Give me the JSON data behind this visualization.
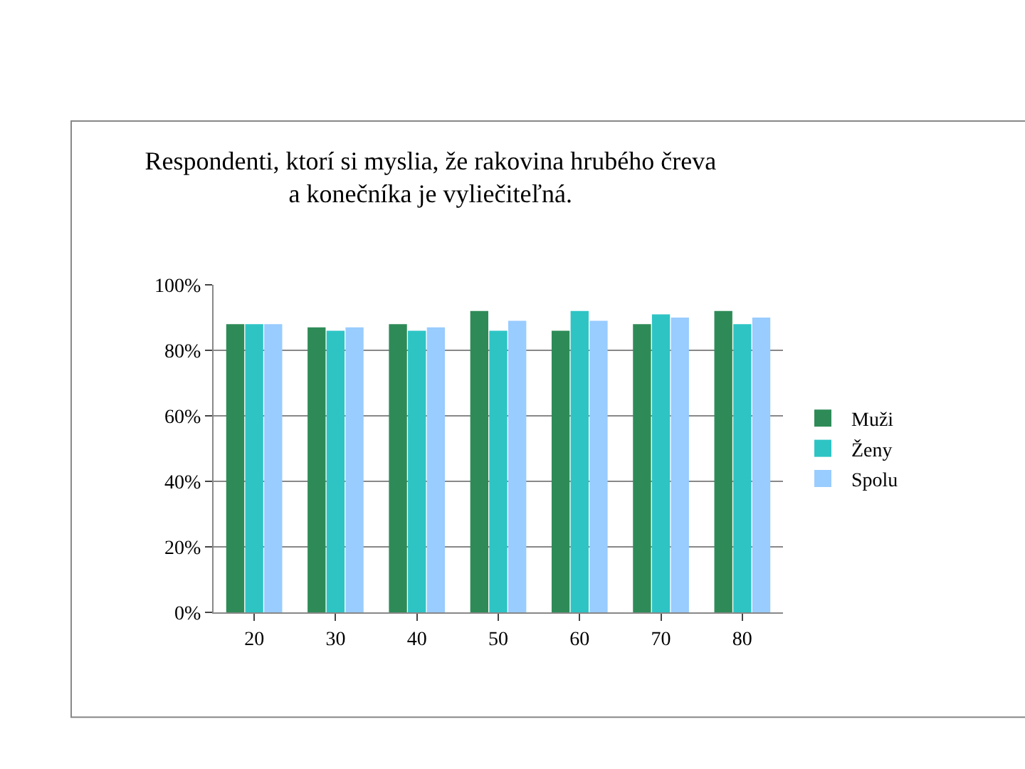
{
  "chart_data": {
    "type": "bar",
    "title": "Respondenti, ktorí si myslia, že rakovina hrubého čreva\na konečníka je vyliečiteľná.",
    "categories": [
      "20",
      "30",
      "40",
      "50",
      "60",
      "70",
      "80"
    ],
    "series": [
      {
        "name": "Muži",
        "color": "#2e8b57",
        "values": [
          88,
          87,
          88,
          92,
          86,
          88,
          92
        ]
      },
      {
        "name": "Ženy",
        "color": "#2ec4c4",
        "values": [
          88,
          86,
          86,
          86,
          92,
          91,
          88
        ]
      },
      {
        "name": "Spolu",
        "color": "#99ccff",
        "values": [
          88,
          87,
          87,
          89,
          89,
          90,
          90
        ]
      }
    ],
    "ylim": [
      0,
      100
    ],
    "yticks": [
      {
        "value": 0,
        "label": "0%"
      },
      {
        "value": 20,
        "label": "20%"
      },
      {
        "value": 40,
        "label": "40%"
      },
      {
        "value": 60,
        "label": "60%"
      },
      {
        "value": 80,
        "label": "80%"
      },
      {
        "value": 100,
        "label": "100%"
      }
    ],
    "grid": "y",
    "legend": "right"
  }
}
